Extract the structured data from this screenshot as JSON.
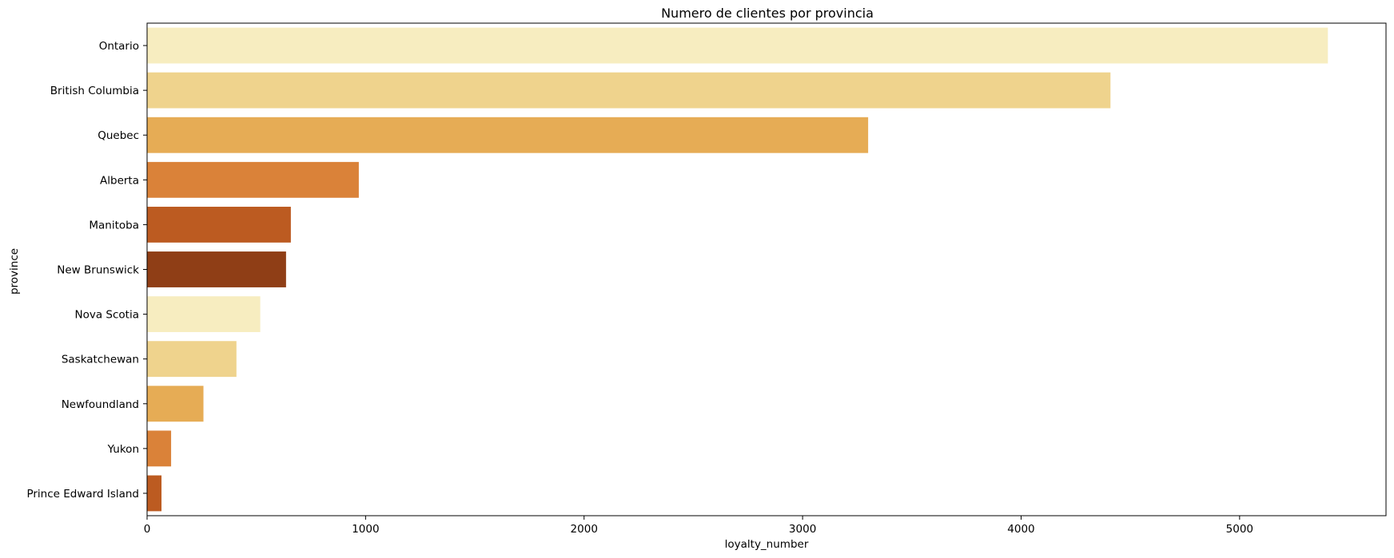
{
  "chart_data": {
    "type": "bar",
    "orientation": "horizontal",
    "title": "Numero de clientes por provincia",
    "xlabel": "loyalty_number",
    "ylabel": "province",
    "categories": [
      "Ontario",
      "British Columbia",
      "Quebec",
      "Alberta",
      "Manitoba",
      "New Brunswick",
      "Nova Scotia",
      "Saskatchewan",
      "Newfoundland",
      "Yukon",
      "Prince Edward Island"
    ],
    "values": [
      5404,
      4409,
      3300,
      969,
      658,
      636,
      518,
      409,
      258,
      110,
      66
    ],
    "colors": [
      "#F7EDC0",
      "#EFD38D",
      "#E6AC55",
      "#DA8239",
      "#BC5B21",
      "#8F3E16",
      "#F7EDC0",
      "#EFD38D",
      "#E6AC55",
      "#DA8239",
      "#BC5B21"
    ],
    "xlim": [
      0,
      5670
    ],
    "xticks": [
      0,
      1000,
      2000,
      3000,
      4000,
      5000
    ],
    "grid": false
  }
}
